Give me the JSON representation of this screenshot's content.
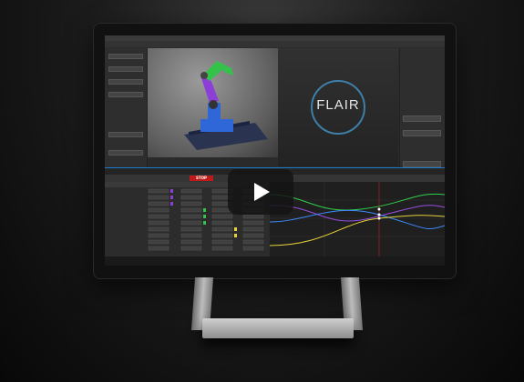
{
  "app": {
    "logo_text": "FLAIR",
    "stop_label": "STOP"
  },
  "colors": {
    "stop_red": "#c01919",
    "timeline_blue": "#1a7bd0",
    "curve_green": "#2fd04c",
    "curve_purple": "#9b4de0",
    "curve_blue": "#3b8bff",
    "curve_yellow": "#e8d23a",
    "robot_green": "#33c24a",
    "robot_purple": "#8b3fd6",
    "robot_blue": "#2f66d8"
  },
  "icons": {
    "play": "play-icon"
  }
}
